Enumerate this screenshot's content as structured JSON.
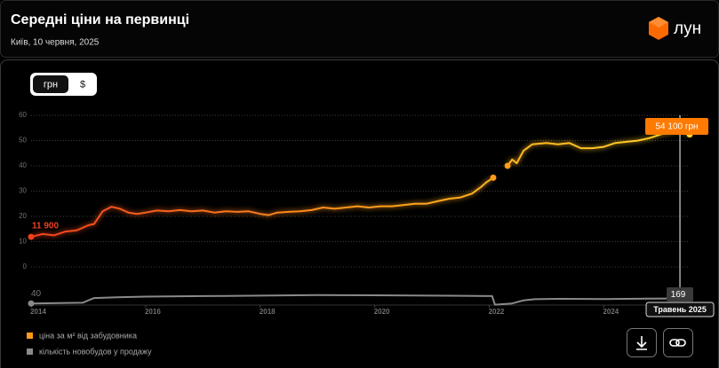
{
  "header": {
    "title": "Середні ціни на первинці",
    "subtitle": "Київ, 10 червня, 2025",
    "brand": "лун"
  },
  "toggle": {
    "options": [
      "грн",
      "$"
    ]
  },
  "chart_data": [
    {
      "type": "line",
      "x": [
        2014.0,
        2014.2,
        2014.4,
        2014.6,
        2014.8,
        2015.0,
        2015.1,
        2015.25,
        2015.4,
        2015.55,
        2015.7,
        2015.85,
        2016.0,
        2016.2,
        2016.4,
        2016.6,
        2016.8,
        2017.0,
        2017.2,
        2017.4,
        2017.6,
        2017.8,
        2018.0,
        2018.15,
        2018.3,
        2018.5,
        2018.7,
        2018.9,
        2019.1,
        2019.3,
        2019.5,
        2019.7,
        2019.9,
        2020.1,
        2020.3,
        2020.5,
        2020.7,
        2020.9,
        2021.1,
        2021.3,
        2021.5,
        2021.7,
        2021.85,
        2021.95,
        2022.07,
        2022.2,
        2022.32,
        2022.4,
        2022.48,
        2022.6,
        2022.75,
        2023.0,
        2023.2,
        2023.4,
        2023.6,
        2023.8,
        2024.0,
        2024.2,
        2024.4,
        2024.6,
        2024.8,
        2025.0,
        2025.2,
        2025.33,
        2025.5
      ],
      "series": [
        {
          "name": "ціна за м² від забудовника",
          "gradient": [
            "#f0401e",
            "#ff9a1a",
            "#ffd42a"
          ],
          "values": [
            11.9,
            13,
            12.5,
            14,
            14.5,
            16.5,
            17,
            22,
            23.8,
            23,
            21.5,
            21,
            21.5,
            22.3,
            22,
            22.5,
            22,
            22.3,
            21.5,
            22,
            21.8,
            22,
            21,
            20.5,
            21.5,
            21.8,
            22,
            22.5,
            23.5,
            23,
            23.5,
            24,
            23.5,
            24,
            24,
            24.5,
            25,
            25,
            26,
            27,
            27.5,
            29,
            31.5,
            33.5,
            35.3,
            null,
            40,
            42.5,
            41,
            46,
            48.5,
            49,
            48.5,
            49,
            47,
            47,
            47.5,
            49,
            49.5,
            50,
            51,
            52.5,
            53.5,
            54.1,
            52.4
          ]
        }
      ],
      "xlim": [
        2014,
        2025.5
      ],
      "ylim": [
        0,
        60
      ],
      "yticks": [
        0,
        10,
        20,
        30,
        40,
        50,
        60
      ],
      "grid": true,
      "annotations": [
        {
          "x": 2014,
          "y": 11.9,
          "text": "11 900"
        },
        {
          "x": 2025.33,
          "y": 54.1,
          "text": "54 100 грн"
        }
      ],
      "cursor": {
        "x": 2025.33,
        "label": "Травень 2025"
      }
    },
    {
      "type": "line",
      "x": [
        2014.0,
        2014.5,
        2014.9,
        2015.1,
        2015.5,
        2016.0,
        2017.0,
        2018.0,
        2019.0,
        2020.0,
        2021.0,
        2021.8,
        2022.05,
        2022.1,
        2022.4,
        2022.6,
        2022.8,
        2023.2,
        2024.0,
        2024.8,
        2025.33,
        2025.5
      ],
      "series": [
        {
          "name": "кількість новобудов у продажу",
          "color": "#8a8a8a",
          "values": [
            40,
            50,
            60,
            180,
            200,
            215,
            230,
            240,
            255,
            250,
            240,
            235,
            230,
            10,
            40,
            120,
            150,
            160,
            155,
            165,
            169,
            170
          ]
        }
      ],
      "xlim": [
        2014,
        2025.5
      ],
      "ylim": [
        0,
        500
      ],
      "xticks": [
        2014,
        2016,
        2018,
        2020,
        2022,
        2024
      ]
    }
  ]
}
